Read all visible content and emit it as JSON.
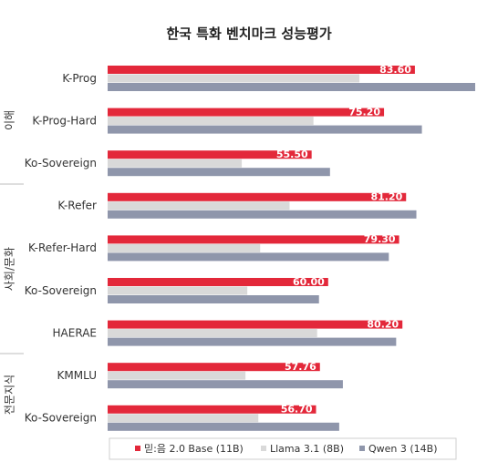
{
  "chart_data": {
    "type": "bar",
    "orientation": "horizontal",
    "title": "한국 특화 벤치마크 성능평가",
    "xlim": [
      0,
      100
    ],
    "grid": false,
    "legend_position": "bottom",
    "groups": [
      {
        "label": "이해",
        "categories": [
          "K-Prog",
          "K-Prog-Hard",
          "Ko-Sovereign"
        ]
      },
      {
        "label": "사회/문화",
        "categories": [
          "K-Refer",
          "K-Refer-Hard",
          "Ko-Sovereign",
          "HAERAE"
        ]
      },
      {
        "label": "전문지식",
        "categories": [
          "KMMLU",
          "Ko-Sovereign"
        ]
      }
    ],
    "categories": [
      "K-Prog",
      "K-Prog-Hard",
      "Ko-Sovereign",
      "K-Refer",
      "K-Refer-Hard",
      "Ko-Sovereign",
      "HAERAE",
      "KMMLU",
      "Ko-Sovereign"
    ],
    "series": [
      {
        "name": "믿:음 2.0 Base (11B)",
        "color": "#e3283a",
        "values": [
          83.6,
          75.2,
          55.5,
          81.2,
          79.3,
          60.0,
          80.2,
          57.76,
          56.7
        ],
        "value_labels": [
          "83.60",
          "75.20",
          "55.50",
          "81.20",
          "79.30",
          "60.00",
          "80.20",
          "57.76",
          "56.70"
        ]
      },
      {
        "name": "Llama 3.1 (8B)",
        "color": "#d9d9d9",
        "values": [
          68.5,
          56.0,
          36.5,
          49.5,
          41.5,
          38.0,
          57.0,
          37.5,
          41.0
        ]
      },
      {
        "name": "Qwen 3 (14B)",
        "color": "#8f96ab",
        "values": [
          100.0,
          85.5,
          60.5,
          84.0,
          76.5,
          57.5,
          78.5,
          64.0,
          63.0
        ]
      }
    ]
  }
}
